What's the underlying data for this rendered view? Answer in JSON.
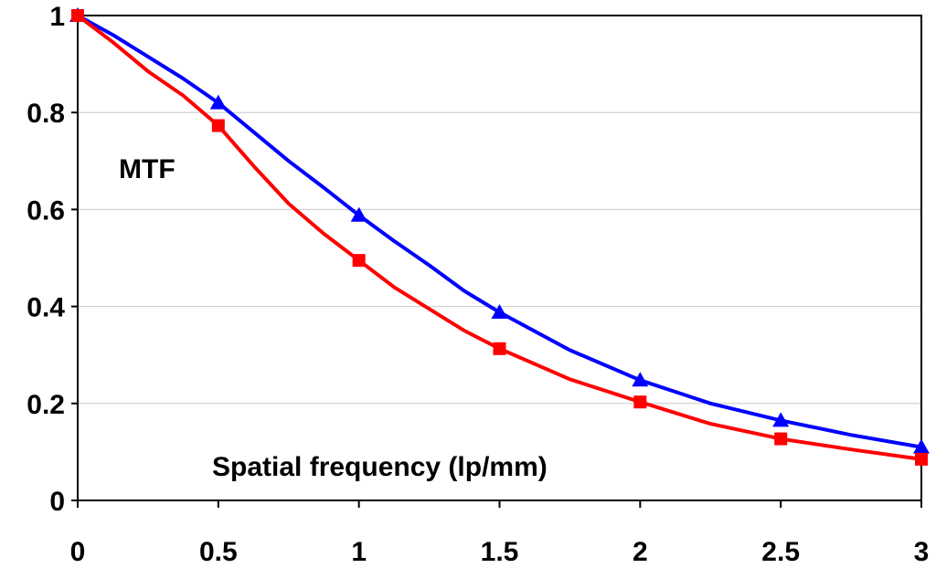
{
  "chart_data": {
    "type": "line",
    "title": "",
    "ylabel": "MTF",
    "xlabel": "Spatial frequency (lp/mm)",
    "xlim": [
      0,
      3
    ],
    "ylim": [
      0,
      1
    ],
    "x_ticks": [
      "0",
      "0.5",
      "1",
      "1.5",
      "2",
      "2.5",
      "3"
    ],
    "y_ticks": [
      "0",
      "0.2",
      "0.4",
      "0.6",
      "0.8",
      "1"
    ],
    "grid": "horizontal",
    "series": [
      {
        "name": "blue-triangles",
        "color": "#0000ff",
        "marker": "triangle",
        "curve_x": [
          0,
          0.125,
          0.25,
          0.375,
          0.5,
          0.625,
          0.75,
          0.875,
          1,
          1.125,
          1.25,
          1.375,
          1.5,
          1.75,
          2,
          2.25,
          2.5,
          2.75,
          3
        ],
        "curve_y": [
          1,
          0.96,
          0.915,
          0.87,
          0.82,
          0.76,
          0.7,
          0.645,
          0.588,
          0.535,
          0.485,
          0.432,
          0.388,
          0.31,
          0.248,
          0.2,
          0.165,
          0.135,
          0.11
        ],
        "points_x": [
          0,
          0.5,
          1,
          1.5,
          2,
          2.5,
          3
        ],
        "points_y": [
          1,
          0.82,
          0.588,
          0.388,
          0.248,
          0.165,
          0.11
        ]
      },
      {
        "name": "red-squares",
        "color": "#ff0000",
        "marker": "square",
        "curve_x": [
          0,
          0.125,
          0.25,
          0.375,
          0.5,
          0.625,
          0.75,
          0.875,
          1,
          1.125,
          1.25,
          1.375,
          1.5,
          1.75,
          2,
          2.25,
          2.5,
          2.75,
          3
        ],
        "curve_y": [
          1,
          0.945,
          0.885,
          0.835,
          0.773,
          0.69,
          0.612,
          0.55,
          0.495,
          0.44,
          0.395,
          0.35,
          0.313,
          0.25,
          0.203,
          0.158,
          0.127,
          0.105,
          0.085
        ],
        "points_x": [
          0,
          0.5,
          1,
          1.5,
          2,
          2.5,
          3
        ],
        "points_y": [
          1,
          0.773,
          0.495,
          0.313,
          0.203,
          0.127,
          0.085
        ]
      }
    ]
  }
}
